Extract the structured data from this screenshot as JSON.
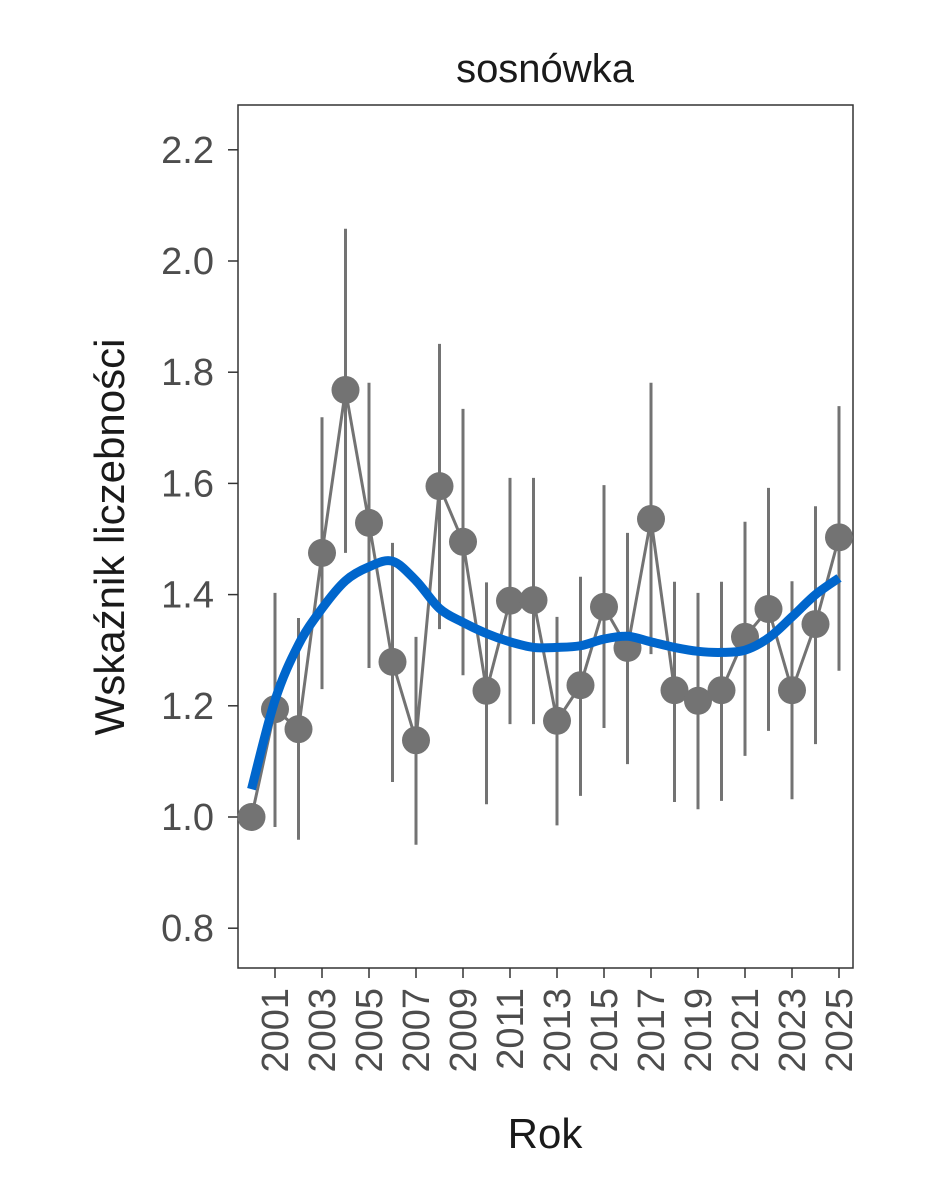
{
  "chart_data": {
    "type": "line",
    "title": "sosnówka",
    "xlabel": "Rok",
    "ylabel": "Wskaźnik liczebności",
    "ylim": [
      0.73,
      2.28
    ],
    "xlim": [
      1999.5,
      2025.4
    ],
    "yticks": [
      "0.8",
      "1.0",
      "1.2",
      "1.4",
      "1.6",
      "1.8",
      "2.0",
      "2.2"
    ],
    "xticks": [
      "2001",
      "2003",
      "2005",
      "2007",
      "2009",
      "2011",
      "2013",
      "2015",
      "2017",
      "2019",
      "2021",
      "2023",
      "2025"
    ],
    "grid": false,
    "colors": {
      "points": "#737373",
      "trend": "#0066cc",
      "axis": "#333333",
      "tick_text": "#4d4d4d"
    },
    "x": [
      2000,
      2001,
      2002,
      2003,
      2004,
      2005,
      2006,
      2007,
      2008,
      2009,
      2010,
      2011,
      2012,
      2013,
      2014,
      2015,
      2016,
      2017,
      2018,
      2019,
      2020,
      2021,
      2022,
      2023,
      2024,
      2025
    ],
    "series": [
      {
        "name": "index",
        "values": [
          1.0,
          1.194,
          1.158,
          1.475,
          1.768,
          1.529,
          1.279,
          1.138,
          1.595,
          1.495,
          1.227,
          1.389,
          1.39,
          1.173,
          1.237,
          1.378,
          1.304,
          1.536,
          1.228,
          1.209,
          1.228,
          1.324,
          1.374,
          1.228,
          1.347,
          1.503
        ],
        "upper": [
          null,
          1.403,
          1.358,
          1.719,
          2.058,
          1.781,
          1.493,
          1.324,
          1.851,
          1.734,
          1.422,
          1.61,
          1.61,
          1.36,
          1.432,
          1.597,
          1.511,
          1.781,
          1.423,
          1.403,
          1.423,
          1.531,
          1.592,
          1.424,
          1.559,
          1.739
        ],
        "lower": [
          null,
          0.982,
          0.959,
          1.23,
          1.475,
          1.268,
          1.063,
          0.95,
          1.338,
          1.255,
          1.023,
          1.167,
          1.167,
          0.985,
          1.038,
          1.16,
          1.095,
          1.293,
          1.027,
          1.014,
          1.029,
          1.11,
          1.155,
          1.032,
          1.131,
          1.263
        ]
      },
      {
        "name": "trend",
        "values": [
          1.05,
          1.21,
          1.31,
          1.375,
          1.425,
          1.45,
          1.46,
          1.425,
          1.375,
          1.35,
          1.33,
          1.315,
          1.305,
          1.305,
          1.308,
          1.32,
          1.325,
          1.315,
          1.305,
          1.298,
          1.296,
          1.3,
          1.322,
          1.36,
          1.4,
          1.43
        ]
      }
    ]
  }
}
